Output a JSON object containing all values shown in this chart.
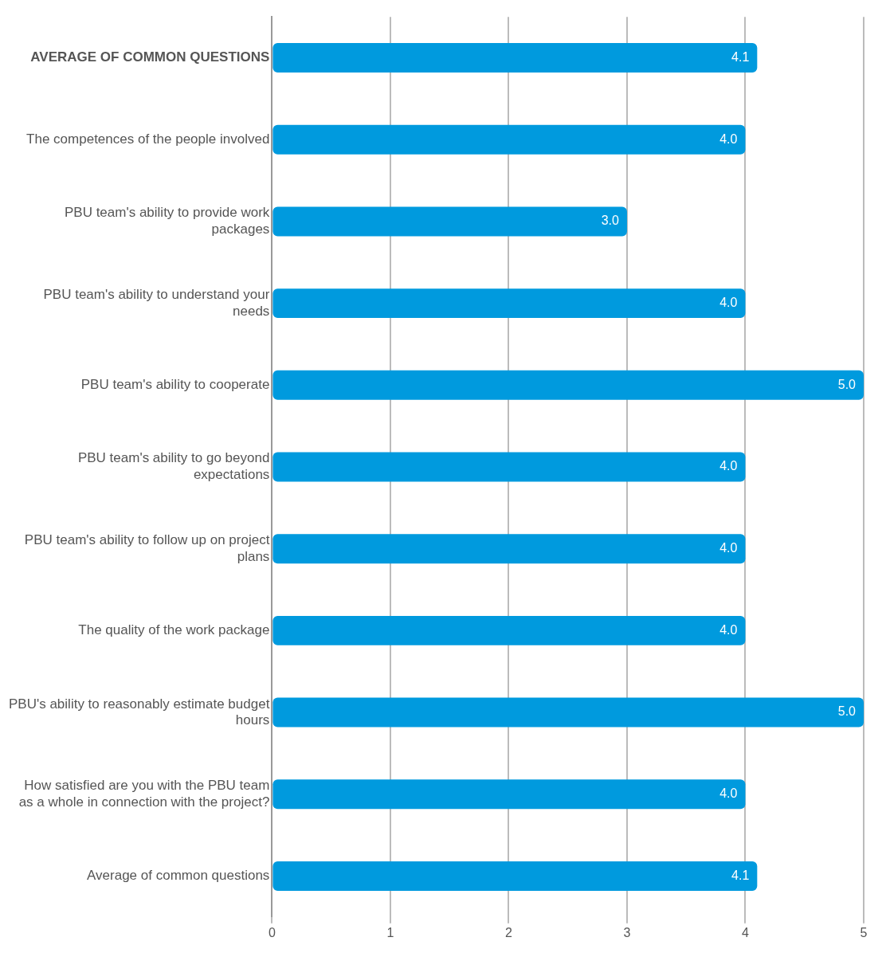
{
  "chart_data": {
    "type": "bar",
    "orientation": "horizontal",
    "categories": [
      "AVERAGE OF COMMON QUESTIONS",
      "The competences of the people involved",
      "PBU team's ability to provide work packages",
      "PBU team's ability to understand your needs",
      "PBU team's ability to cooperate",
      "PBU team's ability to go beyond expectations",
      "PBU team's ability to follow up on project plans",
      "The quality of the work package",
      "PBU's ability to reasonably estimate budget hours",
      "How satisfied are you with the PBU team as a whole in connection with the project?",
      "Average of common questions"
    ],
    "values": [
      4.1,
      4.0,
      3.0,
      4.0,
      5.0,
      4.0,
      4.0,
      4.0,
      5.0,
      4.0,
      4.1
    ],
    "value_labels": [
      "4.1",
      "4.0",
      "3.0",
      "4.0",
      "5.0",
      "4.0",
      "4.0",
      "4.0",
      "5.0",
      "4.0",
      "4.1"
    ],
    "color": "#009ade",
    "xlim": [
      0,
      5
    ],
    "xticks": [
      0,
      1,
      2,
      3,
      4,
      5
    ],
    "grid": "x",
    "legend": false
  }
}
